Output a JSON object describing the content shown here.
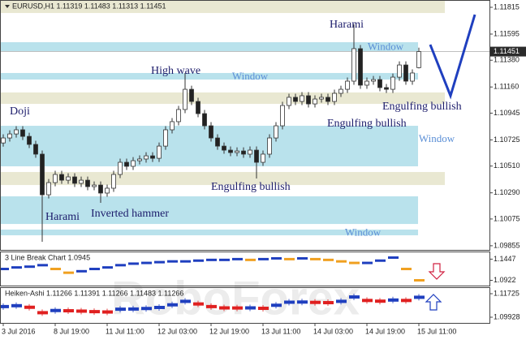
{
  "chart_data": [
    {
      "type": "candlestick",
      "title": "EURUSD,H1  1.11319 1.11483 1.11313 1.11451",
      "watermark": "RoboForex",
      "categories": [
        "3 Jul 2016",
        null,
        null,
        null,
        null,
        null,
        null,
        null,
        "8 Jul 19:00",
        null,
        null,
        null,
        null,
        null,
        null,
        null,
        "11 Jul 11:00",
        null,
        null,
        null,
        null,
        null,
        null,
        null,
        "12 Jul 03:00",
        null,
        null,
        null,
        null,
        null,
        null,
        null,
        "12 Jul 19:00",
        null,
        null,
        null,
        null,
        null,
        null,
        null,
        "13 Jul 11:00",
        null,
        null,
        null,
        null,
        null,
        null,
        null,
        "14 Jul 03:00",
        null,
        null,
        null,
        null,
        null,
        null,
        null,
        "14 Jul 19:00",
        null,
        null,
        null,
        null,
        null,
        null,
        null,
        "15 Jul 11:00"
      ],
      "open": [
        1.107,
        1.10741,
        1.10774,
        1.10808,
        1.10754,
        1.10688,
        1.10608,
        1.10274,
        1.10374,
        1.10441,
        1.10394,
        1.10421,
        1.10368,
        1.10394,
        1.10341,
        1.10354,
        1.10288,
        1.10328,
        1.10441,
        1.10541,
        1.10508,
        1.10554,
        1.10568,
        1.10594,
        1.10574,
        1.10674,
        1.10808,
        1.10875,
        1.10975,
        1.11141,
        1.11041,
        1.10941,
        1.10841,
        1.10741,
        1.10674,
        1.10641,
        1.10621,
        1.10634,
        1.10608,
        1.10641,
        1.10541,
        1.10608,
        1.10741,
        1.10841,
        1.11008,
        1.11075,
        1.11041,
        1.11088,
        1.11021,
        1.11061,
        1.11075,
        1.11041,
        1.11108,
        1.11141,
        1.11208,
        1.11475,
        1.11175,
        1.11208,
        1.11221,
        1.11155,
        1.11141,
        1.11241,
        1.11341,
        1.11208,
        1.11319
      ],
      "high": [
        1.10771,
        1.10804,
        1.10838,
        1.10838,
        1.10784,
        1.10718,
        1.10638,
        1.10404,
        1.10471,
        1.10471,
        1.10451,
        1.10451,
        1.10424,
        1.10424,
        1.10384,
        1.10384,
        1.10358,
        1.10471,
        1.10571,
        1.10571,
        1.10584,
        1.10598,
        1.10624,
        1.10624,
        1.10704,
        1.10838,
        1.10905,
        1.11005,
        1.11275,
        1.11171,
        1.11071,
        1.10971,
        1.10871,
        1.10771,
        1.10704,
        1.10671,
        1.10664,
        1.10664,
        1.10671,
        1.10671,
        1.10638,
        1.10771,
        1.10871,
        1.11038,
        1.11105,
        1.11105,
        1.11118,
        1.11118,
        1.11091,
        1.11105,
        1.11105,
        1.11138,
        1.11171,
        1.11238,
        1.11675,
        1.11505,
        1.11238,
        1.11251,
        1.11251,
        1.11185,
        1.11271,
        1.11371,
        1.11371,
        1.11305,
        1.11483
      ],
      "low": [
        1.1067,
        1.10711,
        1.10744,
        1.10724,
        1.10658,
        1.10578,
        1.09888,
        1.10244,
        1.10344,
        1.10364,
        1.10364,
        1.10338,
        1.10338,
        1.10311,
        1.10311,
        1.10208,
        1.10258,
        1.10298,
        1.10411,
        1.10478,
        1.10478,
        1.10524,
        1.10538,
        1.10544,
        1.10544,
        1.10644,
        1.10778,
        1.10845,
        1.10945,
        1.11011,
        1.10911,
        1.10811,
        1.10711,
        1.10644,
        1.10611,
        1.10591,
        1.10591,
        1.10578,
        1.10578,
        1.10408,
        1.10511,
        1.10578,
        1.10711,
        1.10811,
        1.10978,
        1.11011,
        1.11011,
        1.10991,
        1.10991,
        1.11031,
        1.11011,
        1.11011,
        1.11078,
        1.11111,
        1.11178,
        1.11145,
        1.11145,
        1.11178,
        1.11125,
        1.11111,
        1.11111,
        1.11211,
        1.11178,
        1.11178,
        1.11313
      ],
      "close": [
        1.10741,
        1.10774,
        1.10808,
        1.10754,
        1.10688,
        1.10608,
        1.10274,
        1.10374,
        1.10441,
        1.10394,
        1.10421,
        1.10368,
        1.10394,
        1.10341,
        1.10354,
        1.10288,
        1.10328,
        1.10441,
        1.10541,
        1.10508,
        1.10554,
        1.10568,
        1.10594,
        1.10574,
        1.10674,
        1.10808,
        1.10875,
        1.10975,
        1.11141,
        1.11041,
        1.10941,
        1.10841,
        1.10741,
        1.10674,
        1.10641,
        1.10621,
        1.10634,
        1.10608,
        1.10641,
        1.10541,
        1.10608,
        1.10741,
        1.10841,
        1.11008,
        1.11075,
        1.11041,
        1.11088,
        1.11021,
        1.11061,
        1.11075,
        1.11041,
        1.11108,
        1.11141,
        1.11208,
        1.11475,
        1.11175,
        1.11208,
        1.11221,
        1.11155,
        1.11141,
        1.11241,
        1.11341,
        1.11208,
        1.11275,
        1.11451
      ],
      "up_color": "#ffffff",
      "down_color": "#222222",
      "wick_color": "#333333",
      "current_price": 1.11451,
      "ylim": [
        1.09821,
        1.11875
      ],
      "yticks": [
        1.09855,
        1.10075,
        {
          "value": 1.1029,
          "label": "1.10290"
        },
        {
          "value": 1.1051,
          "label": "1.10510"
        },
        1.10725,
        1.10945,
        {
          "value": 1.1116,
          "label": "1.11160"
        },
        {
          "value": 1.1138,
          "label": "1.11380"
        },
        1.11595,
        1.11815
      ],
      "zones": [
        {
          "from": 1.11768,
          "to": 1.11875,
          "color": "#e9e8d2"
        },
        {
          "from": 1.11455,
          "to": 1.11528,
          "color": "#b9e2ec",
          "label": "Window"
        },
        {
          "from": 1.11221,
          "to": 1.11275,
          "color": "#b9e2ec",
          "label": "Window"
        },
        {
          "from": 1.11021,
          "to": 1.11115,
          "color": "#e9e8d2"
        },
        {
          "from": 1.10508,
          "to": 1.10841,
          "color": "#b9e2ec",
          "label": "Window"
        },
        {
          "from": 1.10354,
          "to": 1.10461,
          "color": "#e9e8d2"
        },
        {
          "from": 1.10034,
          "to": 1.10261,
          "color": "#b9e2ec"
        },
        {
          "from": 1.09941,
          "to": 1.09988,
          "color": "#b9e2ec",
          "label": "Window"
        }
      ],
      "annotations": [
        "Doji",
        "Harami",
        "High wave",
        "Harami",
        "Inverted hammer",
        "Engulfing bullish",
        "Engulfing bullish",
        "Engulfing bullish"
      ]
    },
    {
      "type": "linebreak",
      "title": "3 Line Break Chart 1.0945",
      "values": [
        1.1203,
        1.1241,
        1.126,
        1.1297,
        1.1203,
        1.111,
        1.1147,
        1.1203,
        1.1241,
        1.1297,
        1.1335,
        1.1353,
        1.1372,
        1.1391,
        1.1391,
        1.141,
        1.1428,
        1.1428,
        1.1447,
        1.1428,
        1.1447,
        1.1466,
        1.1447,
        1.1466,
        1.1447,
        1.1428,
        1.1391,
        1.1353,
        1.1353,
        1.141,
        1.1485,
        1.1203,
        1.0922
      ],
      "up_color": "#1f3fbf",
      "down_color": "#f0a020",
      "ylim": [
        1.0791,
        1.1616
      ],
      "yticks": [
        1.1447,
        1.0922
      ]
    },
    {
      "type": "heikenashi",
      "title": "Heiken-Ashi 1.11266 1.11391 1.11266 1.11483 1.11266",
      "values": [
        1.10741,
        1.10808,
        1.10688,
        1.10274,
        1.10441,
        1.10421,
        1.10394,
        1.10354,
        1.10328,
        1.10541,
        1.10554,
        1.10594,
        1.10674,
        1.10875,
        1.11141,
        1.10941,
        1.10741,
        1.10641,
        1.10634,
        1.10641,
        1.10608,
        1.10841,
        1.11075,
        1.11088,
        1.11061,
        1.11041,
        1.11141,
        1.11475,
        1.11208,
        1.11155,
        1.11241,
        1.11208,
        1.11451
      ],
      "up_color": "#1f3fbf",
      "down_color": "#e02020",
      "ylim": [
        1.09494,
        1.12159
      ],
      "yticks": [
        1.11725,
        1.09928
      ]
    }
  ]
}
